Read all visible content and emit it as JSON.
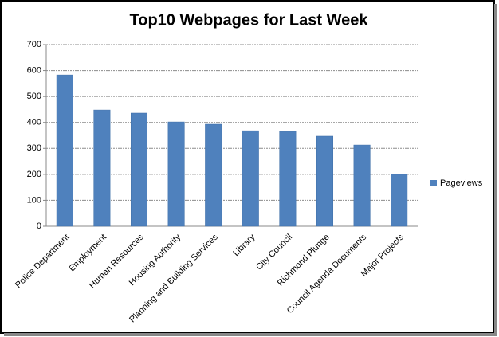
{
  "chart_data": {
    "type": "bar",
    "title": "Top10 Webpages for Last Week",
    "categories": [
      "Police Department",
      "Employment",
      "Human Resources",
      "Housing Authority",
      "Planning and Building Services",
      "Library",
      "City Council",
      "Richmond Plunge",
      "Council Agenda Documents",
      "Major Projects"
    ],
    "series": [
      {
        "name": "Pageviews",
        "color": "#4f81bd",
        "values": [
          583,
          448,
          436,
          402,
          393,
          368,
          365,
          347,
          313,
          200
        ]
      }
    ],
    "ylim": [
      0,
      700
    ],
    "yticks": [
      0,
      100,
      200,
      300,
      400,
      500,
      600,
      700
    ],
    "grid": true,
    "legend": "right"
  }
}
